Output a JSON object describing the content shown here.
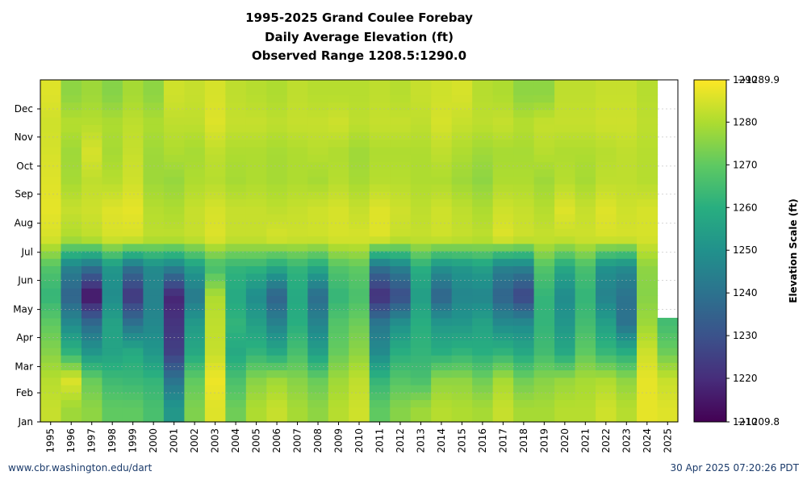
{
  "chart_data": {
    "type": "heatmap",
    "title": "1995-2025 Grand Coulee Forebay",
    "subtitle_1": "Daily Average Elevation (ft)",
    "subtitle_2": "Observed Range 1208.5:1290.0",
    "x_categories": [
      "1995",
      "1996",
      "1997",
      "1998",
      "1999",
      "2000",
      "2001",
      "2002",
      "2003",
      "2004",
      "2005",
      "2006",
      "2007",
      "2008",
      "2009",
      "2010",
      "2011",
      "2012",
      "2013",
      "2014",
      "2015",
      "2016",
      "2017",
      "2018",
      "2019",
      "2020",
      "2021",
      "2022",
      "2023",
      "2024",
      "2025"
    ],
    "y_tick_labels": [
      "Jan",
      "Feb",
      "Mar",
      "Apr",
      "May",
      "Jun",
      "Jul",
      "Aug",
      "Sep",
      "Oct",
      "Nov",
      "Dec"
    ],
    "colorbar_label": "Elevation Scale (ft)",
    "colorbar_ticks": [
      1220,
      1230,
      1240,
      1250,
      1260,
      1270,
      1280
    ],
    "colorbar_max_label": "1290",
    "colorbar_max_marker": "1289.9",
    "colorbar_min_label": "1210",
    "colorbar_min_marker": "1209.8",
    "scale_range": [
      1209.8,
      1289.9
    ],
    "colormap": "viridis",
    "grid": true,
    "series_note_rows": "monthly approximate values, rows Jan..Dec",
    "values": [
      [
        1283,
        1281,
        1275,
        1270,
        1262,
        1268,
        1285,
        1287,
        1286,
        1285,
        1284,
        1286
      ],
      [
        1278,
        1286,
        1262,
        1248,
        1235,
        1245,
        1280,
        1283,
        1279,
        1278,
        1281,
        1276
      ],
      [
        1276,
        1271,
        1252,
        1238,
        1213,
        1240,
        1282,
        1284,
        1282,
        1285,
        1281,
        1278
      ],
      [
        1270,
        1264,
        1256,
        1256,
        1248,
        1252,
        1285,
        1286,
        1281,
        1279,
        1280,
        1275
      ],
      [
        1270,
        1263,
        1259,
        1240,
        1222,
        1240,
        1285,
        1287,
        1284,
        1283,
        1282,
        1279
      ],
      [
        1266,
        1262,
        1252,
        1247,
        1245,
        1248,
        1282,
        1281,
        1278,
        1278,
        1280,
        1276
      ],
      [
        1252,
        1240,
        1225,
        1222,
        1218,
        1245,
        1282,
        1280,
        1277,
        1280,
        1282,
        1284
      ],
      [
        1274,
        1270,
        1258,
        1253,
        1242,
        1254,
        1283,
        1283,
        1280,
        1279,
        1282,
        1283
      ],
      [
        1286,
        1288,
        1283,
        1282,
        1280,
        1265,
        1286,
        1285,
        1281,
        1282,
        1286,
        1285
      ],
      [
        1272,
        1266,
        1258,
        1262,
        1258,
        1262,
        1283,
        1283,
        1279,
        1280,
        1283,
        1282
      ],
      [
        1280,
        1275,
        1262,
        1255,
        1248,
        1262,
        1283,
        1283,
        1280,
        1280,
        1283,
        1281
      ],
      [
        1283,
        1278,
        1258,
        1245,
        1235,
        1258,
        1285,
        1282,
        1279,
        1279,
        1282,
        1280
      ],
      [
        1279,
        1275,
        1266,
        1260,
        1258,
        1262,
        1284,
        1283,
        1280,
        1280,
        1283,
        1282
      ],
      [
        1276,
        1271,
        1255,
        1246,
        1238,
        1258,
        1284,
        1284,
        1279,
        1281,
        1283,
        1281
      ],
      [
        1281,
        1278,
        1271,
        1268,
        1262,
        1268,
        1285,
        1285,
        1281,
        1280,
        1284,
        1281
      ],
      [
        1284,
        1282,
        1276,
        1272,
        1266,
        1270,
        1285,
        1283,
        1279,
        1278,
        1282,
        1281
      ],
      [
        1270,
        1262,
        1248,
        1242,
        1220,
        1240,
        1286,
        1286,
        1281,
        1280,
        1283,
        1282
      ],
      [
        1275,
        1268,
        1260,
        1250,
        1228,
        1245,
        1283,
        1284,
        1281,
        1280,
        1283,
        1281
      ],
      [
        1278,
        1266,
        1262,
        1260,
        1254,
        1260,
        1283,
        1282,
        1280,
        1280,
        1282,
        1283
      ],
      [
        1281,
        1276,
        1260,
        1252,
        1235,
        1250,
        1284,
        1284,
        1280,
        1282,
        1285,
        1284
      ],
      [
        1280,
        1276,
        1262,
        1252,
        1246,
        1252,
        1283,
        1282,
        1278,
        1280,
        1283,
        1285
      ],
      [
        1279,
        1272,
        1260,
        1256,
        1246,
        1255,
        1282,
        1280,
        1276,
        1278,
        1282,
        1281
      ],
      [
        1283,
        1279,
        1262,
        1248,
        1235,
        1245,
        1286,
        1284,
        1280,
        1279,
        1283,
        1280
      ],
      [
        1279,
        1272,
        1258,
        1248,
        1226,
        1245,
        1284,
        1283,
        1280,
        1279,
        1281,
        1276
      ],
      [
        1279,
        1275,
        1265,
        1262,
        1262,
        1268,
        1283,
        1281,
        1278,
        1281,
        1283,
        1276
      ],
      [
        1281,
        1277,
        1258,
        1252,
        1248,
        1258,
        1283,
        1286,
        1281,
        1280,
        1283,
        1282
      ],
      [
        1281,
        1279,
        1270,
        1265,
        1262,
        1266,
        1284,
        1283,
        1279,
        1280,
        1283,
        1282
      ],
      [
        1284,
        1280,
        1263,
        1255,
        1245,
        1250,
        1285,
        1286,
        1282,
        1281,
        1284,
        1283
      ],
      [
        1281,
        1276,
        1260,
        1240,
        1240,
        1248,
        1285,
        1284,
        1282,
        1282,
        1284,
        1283
      ],
      [
        1287,
        1287,
        1284,
        1278,
        1275,
        1276,
        1285,
        1285,
        1281,
        1281,
        1282,
        1281
      ],
      [
        1286,
        1283,
        1272,
        1265,
        null,
        null,
        null,
        null,
        null,
        null,
        null,
        null
      ]
    ]
  },
  "footer": {
    "left": "www.cbr.washington.edu/dart",
    "right": "30 Apr 2025 07:20:26 PDT"
  }
}
